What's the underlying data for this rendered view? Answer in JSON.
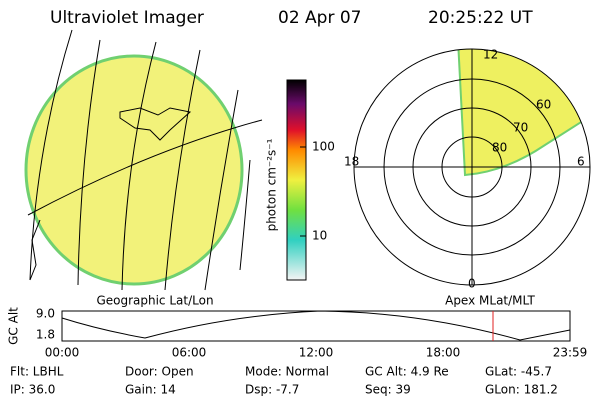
{
  "header": {
    "title": "Ultraviolet Imager",
    "date": "02 Apr 07",
    "time": "20:25:22 UT"
  },
  "map": {
    "label": "Geographic Lat/Lon"
  },
  "colorbar": {
    "label": "photon cm⁻²s⁻¹",
    "ticks": [
      "100",
      "10"
    ]
  },
  "polar": {
    "label": "Apex MLat/MLT",
    "hours": [
      "12",
      "18",
      "6",
      "0"
    ],
    "latitudes": [
      "60",
      "70",
      "80"
    ]
  },
  "timeline": {
    "y_label": "GC Alt",
    "yticks": [
      "9.0",
      "1.8"
    ],
    "xticks": [
      "00:00",
      "06:00",
      "12:00",
      "18:00",
      "23:59"
    ]
  },
  "footer": {
    "rows": [
      [
        "Flt: LBHL",
        "Door: Open",
        "Mode: Normal",
        "GC Alt: 4.9 Re",
        "GLat: -45.7"
      ],
      [
        "IP: 36.0",
        "Gain: 14",
        "Dsp: -7.7",
        "Seq: 39",
        "GLon: 181.2"
      ]
    ]
  }
}
